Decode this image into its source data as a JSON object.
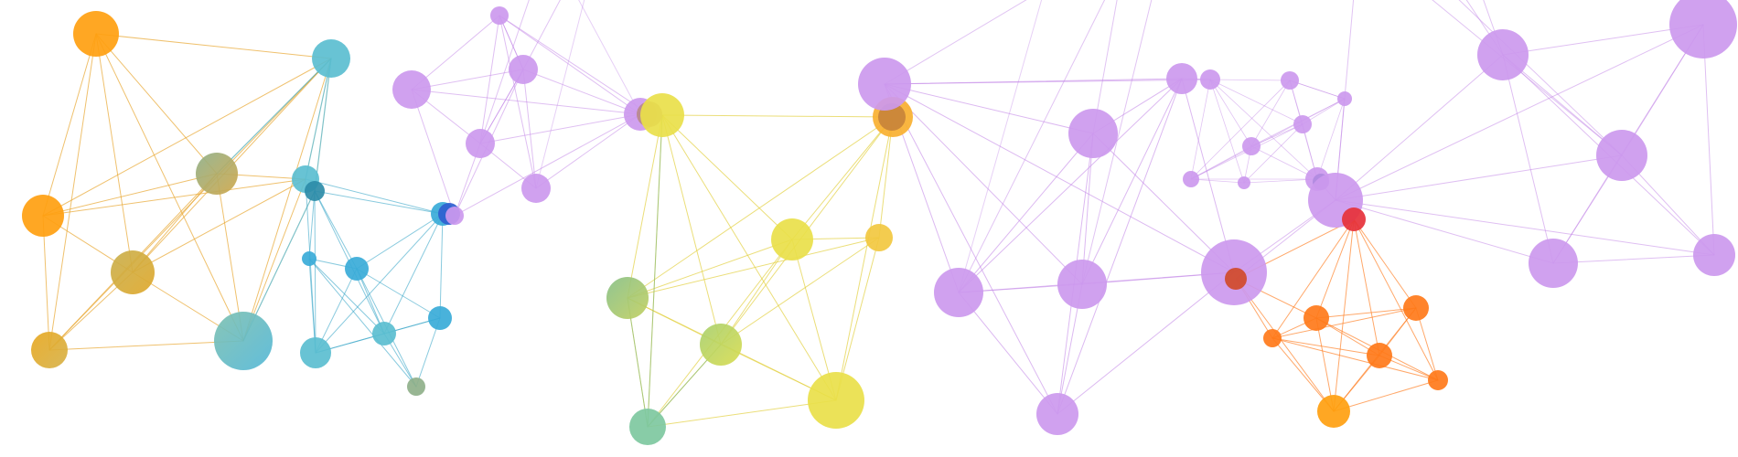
{
  "palette": {
    "orange": "#FFA010",
    "teal": "#5BBED0",
    "blue_teal": "#3AABD8",
    "purple": "#CC99EE",
    "yellow": "#E9E04A",
    "green": "#9BC87A",
    "sea_green": "#7EC8A0",
    "deep_orange": "#FF7A1A",
    "red": "#E6313A",
    "blue": "#2E6FD8",
    "olive": "#A8AA60",
    "gold": "#D4AE36",
    "sage": "#8FB08A"
  },
  "background": "#ffffff",
  "clusters": [
    {
      "name": "orange-teal-cluster",
      "color": "orange"
    },
    {
      "name": "teal-blue-cluster",
      "color": "teal"
    },
    {
      "name": "purple-left-cluster",
      "color": "purple"
    },
    {
      "name": "yellow-green-cluster",
      "color": "yellow"
    },
    {
      "name": "purple-center-cluster",
      "color": "purple"
    },
    {
      "name": "purple-small-cluster",
      "color": "purple"
    },
    {
      "name": "purple-right-cluster",
      "color": "purple"
    },
    {
      "name": "orange-red-cluster",
      "color": "deep_orange"
    }
  ]
}
